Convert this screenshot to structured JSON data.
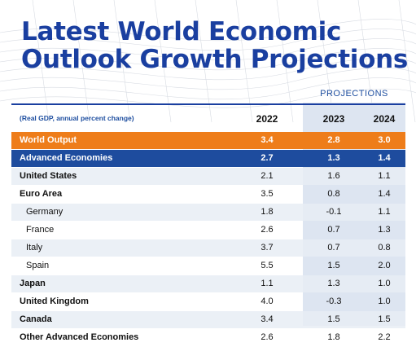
{
  "title": {
    "line1": "Latest World Economic",
    "line2": "Outlook Growth Projections"
  },
  "colors": {
    "title": "#1a3fa0",
    "world_output_row": "#ee7d1a",
    "advanced_economies_row": "#1e4c9e",
    "projection_column": "#dde5f1",
    "shaded_row": "#e8edf5"
  },
  "table": {
    "projections_label": "PROJECTIONS",
    "subtitle": "(Real GDP, annual percent change)",
    "years": [
      "2022",
      "2023",
      "2024"
    ],
    "rows": [
      {
        "name": "World Output",
        "values": [
          "3.4",
          "2.8",
          "3.0"
        ],
        "style": "orange"
      },
      {
        "name": "Advanced Economies",
        "values": [
          "2.7",
          "1.3",
          "1.4"
        ],
        "style": "blue"
      },
      {
        "name": "United States",
        "values": [
          "2.1",
          "1.6",
          "1.1"
        ],
        "style": "shaded bold"
      },
      {
        "name": "Euro Area",
        "values": [
          "3.5",
          "0.8",
          "1.4"
        ],
        "style": "bold"
      },
      {
        "name": "Germany",
        "values": [
          "1.8",
          "-0.1",
          "1.1"
        ],
        "style": "shaded indent"
      },
      {
        "name": "France",
        "values": [
          "2.6",
          "0.7",
          "1.3"
        ],
        "style": "indent"
      },
      {
        "name": "Italy",
        "values": [
          "3.7",
          "0.7",
          "0.8"
        ],
        "style": "shaded indent"
      },
      {
        "name": "Spain",
        "values": [
          "5.5",
          "1.5",
          "2.0"
        ],
        "style": "indent"
      },
      {
        "name": "Japan",
        "values": [
          "1.1",
          "1.3",
          "1.0"
        ],
        "style": "shaded bold"
      },
      {
        "name": "United Kingdom",
        "values": [
          "4.0",
          "-0.3",
          "1.0"
        ],
        "style": "bold"
      },
      {
        "name": "Canada",
        "values": [
          "3.4",
          "1.5",
          "1.5"
        ],
        "style": "shaded bold"
      },
      {
        "name": "Other Advanced Economies",
        "values": [
          "2.6",
          "1.8",
          "2.2"
        ],
        "style": "bold"
      }
    ]
  }
}
